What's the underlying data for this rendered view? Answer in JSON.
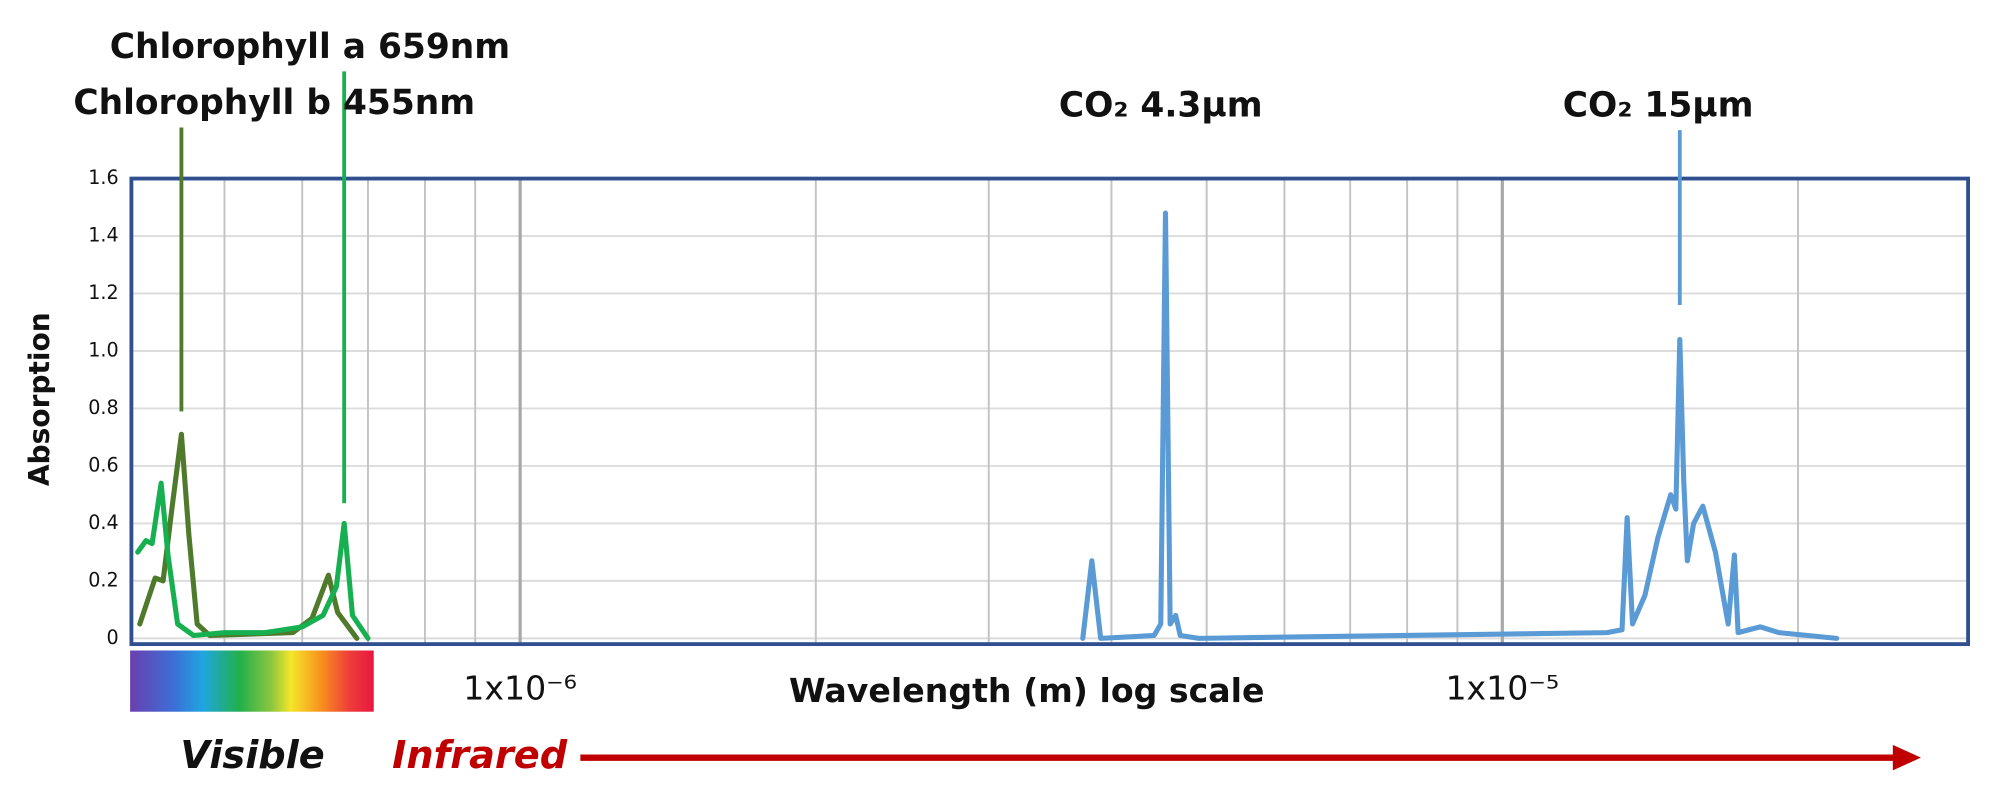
{
  "chart_data": {
    "type": "line",
    "xscale": "log",
    "xlim": [
      4.02e-07,
      2.98e-05
    ],
    "ylim": [
      -0.02,
      1.6
    ],
    "xticks": [
      {
        "value": 1e-06,
        "label": "1x10⁻⁶"
      },
      {
        "value": 1e-05,
        "label": "1x10⁻⁵"
      }
    ],
    "xgrid": [
      5e-07,
      6e-07,
      7e-07,
      8e-07,
      9e-07,
      2e-06,
      3e-06,
      4e-06,
      5e-06,
      6e-06,
      7e-06,
      8e-06,
      9e-06,
      2e-05
    ],
    "yticks": [
      0,
      0.2,
      0.4,
      0.6,
      0.8,
      {
        "value": 1,
        "label": "1.0"
      },
      1.2,
      1.4,
      1.6
    ],
    "grid": true,
    "xlabel": "Wavelength (m) log scale",
    "ylabel": "Absorption",
    "region_labels": [
      "Visible",
      "Infrared"
    ],
    "series": [
      {
        "color": "#4f7a2c",
        "x": [
          4.1e-07,
          4.25e-07,
          4.33e-07,
          4.42e-07,
          4.52e-07,
          4.6e-07,
          4.69e-07,
          4.83e-07,
          5.87e-07,
          6.14e-07,
          6.38e-07,
          6.52e-07,
          6.82e-07
        ],
        "values": [
          0.05,
          0.21,
          0.2,
          0.45,
          0.71,
          0.36,
          0.05,
          0.01,
          0.02,
          0.07,
          0.22,
          0.09,
          0
        ]
      },
      {
        "color": "#17b050",
        "x": [
          4.08e-07,
          4.16e-07,
          4.22e-07,
          4.31e-07,
          4.38e-07,
          4.48e-07,
          4.65e-07,
          5e-07,
          5.5e-07,
          6e-07,
          6.3e-07,
          6.5e-07,
          6.62e-07,
          6.75e-07,
          7e-07
        ],
        "values": [
          0.3,
          0.34,
          0.33,
          0.54,
          0.29,
          0.05,
          0.01,
          0.02,
          0.02,
          0.04,
          0.08,
          0.18,
          0.4,
          0.08,
          0
        ]
      },
      {
        "color": "#5b9bd5",
        "x": [
          3.74e-06,
          3.82e-06,
          3.9e-06,
          4.42e-06,
          4.49e-06,
          4.54e-06,
          4.59e-06,
          4.65e-06,
          4.7e-06,
          4.91e-06,
          1.278e-05,
          1.324e-05,
          1.34e-05,
          1.357e-05,
          1.397e-05,
          1.44e-05,
          1.484e-05,
          1.502e-05,
          1.516e-05,
          1.53e-05,
          1.543e-05,
          1.566e-05,
          1.6e-05,
          1.648e-05,
          1.698e-05,
          1.723e-05,
          1.738e-05,
          1.83e-05,
          1.912e-05,
          2.19e-05
        ],
        "values": [
          0,
          0.27,
          0,
          0.01,
          0.05,
          1.48,
          0.05,
          0.08,
          0.01,
          0,
          0.02,
          0.03,
          0.42,
          0.05,
          0.15,
          0.35,
          0.5,
          0.45,
          1.04,
          0.55,
          0.27,
          0.4,
          0.46,
          0.3,
          0.05,
          0.29,
          0.02,
          0.04,
          0.02,
          0
        ]
      }
    ],
    "annotations": [
      {
        "text": "Chlorophyll a 659nm",
        "x": 6.62e-07,
        "y": 0.47
      },
      {
        "text": "Chlorophyll b 455nm",
        "x": 4.52e-07,
        "y": 0.79
      },
      {
        "text": "CO₂ 4.3µm"
      },
      {
        "text": "CO₂ 15µm",
        "x": 1.516e-05,
        "y": 1.16
      }
    ]
  }
}
